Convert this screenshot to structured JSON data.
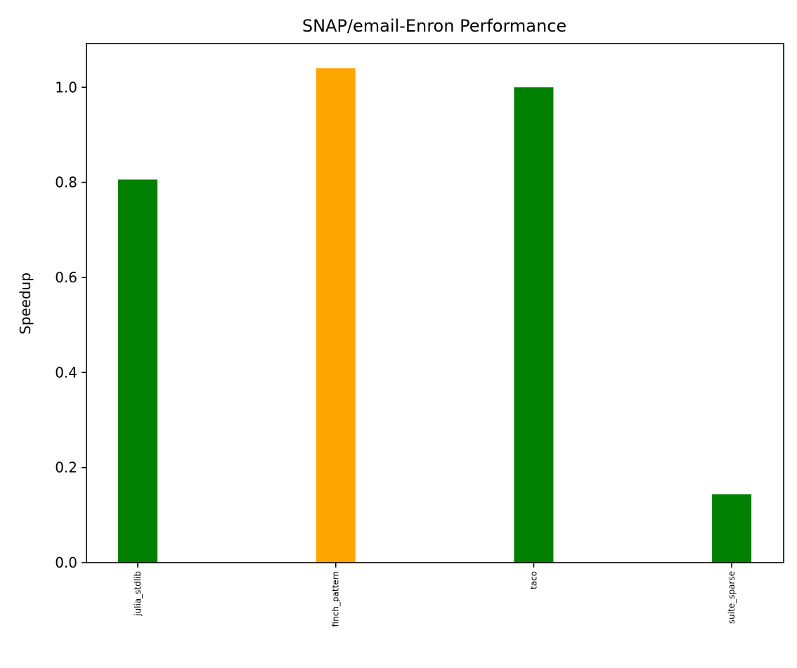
{
  "chart_data": {
    "type": "bar",
    "title": "SNAP/email-Enron Performance",
    "xlabel": "",
    "ylabel": "Speedup",
    "categories": [
      "julia_stdlib",
      "finch_pattern",
      "taco",
      "suite_sparse"
    ],
    "values": [
      0.806,
      1.04,
      1.0,
      0.144
    ],
    "bar_colors": [
      "#008000",
      "#FFA500",
      "#008000",
      "#008000"
    ],
    "ylim": [
      0,
      1.092
    ],
    "yticks": [
      "0.0",
      "0.2",
      "0.4",
      "0.6",
      "0.8",
      "1.0"
    ],
    "ytick_values": [
      0,
      0.2,
      0.4,
      0.6,
      0.8,
      1.0
    ],
    "grid": false,
    "legend": "none"
  }
}
